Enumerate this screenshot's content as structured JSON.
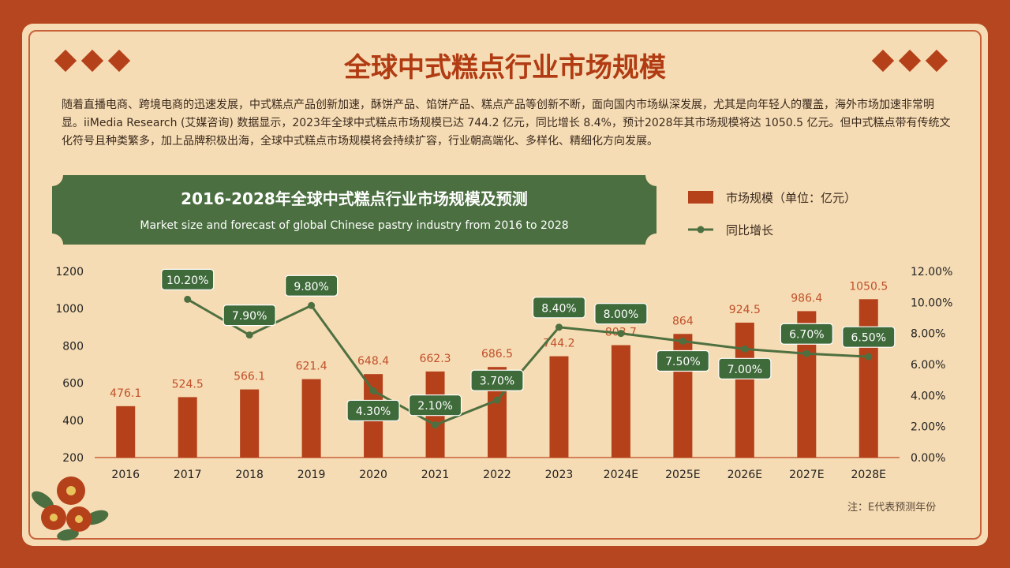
{
  "title": "全球中式糕点行业市场规模",
  "intro": "随着直播电商、跨境电商的迅速发展，中式糕点产品创新加速，酥饼产品、馅饼产品、糕点产品等创新不断，面向国内市场纵深发展，尤其是向年轻人的覆盖，海外市场加速非常明显。iiMedia Research (艾媒咨询) 数据显示，2023年全球中式糕点市场规模已达 744.2 亿元，同比增长 8.4%，预计2028年其市场规模将达 1050.5 亿元。但中式糕点带有传统文化符号且种类繁多，加上品牌积极出海，全球中式糕点市场规模将会持续扩容，行业朝高端化、多样化、精细化方向发展。",
  "note": "注：E代表预测年份",
  "colors": {
    "bar": "#b5411b",
    "line": "#4e7040",
    "label_bg": "#3f6a3a",
    "bar_label": "#c0502a",
    "frame": "#b5461f",
    "panel": "#f6dcb4"
  },
  "chart_data": {
    "type": "bar+line",
    "title": "2016-2028年全球中式糕点行业市场规模及预测",
    "subtitle": "Market size and forecast of global Chinese pastry industry from 2016 to 2028",
    "categories": [
      "2016",
      "2017",
      "2018",
      "2019",
      "2020",
      "2021",
      "2022",
      "2023",
      "2024E",
      "2025E",
      "2026E",
      "2027E",
      "2028E"
    ],
    "series": [
      {
        "name": "市场规模（单位：亿元）",
        "type": "bar",
        "axis": "left",
        "values": [
          476.1,
          524.5,
          566.1,
          621.4,
          648.4,
          662.3,
          686.5,
          744.2,
          803.7,
          864,
          924.5,
          986.4,
          1050.5
        ],
        "labels": [
          "476.1",
          "524.5",
          "566.1",
          "621.4",
          "648.4",
          "662.3",
          "686.5",
          "744.2",
          "803.7",
          "864",
          "924.5",
          "986.4",
          "1050.5"
        ]
      },
      {
        "name": "同比增长",
        "type": "line",
        "axis": "right",
        "values": [
          null,
          10.2,
          7.9,
          9.8,
          4.3,
          2.1,
          3.7,
          8.4,
          8.0,
          7.5,
          7.0,
          6.7,
          6.5
        ],
        "labels": [
          "",
          "10.20%",
          "7.90%",
          "9.80%",
          "4.30%",
          "2.10%",
          "3.70%",
          "8.40%",
          "8.00%",
          "7.50%",
          "7.00%",
          "6.70%",
          "6.50%"
        ],
        "label_position": [
          "",
          "above",
          "above",
          "above",
          "below",
          "above",
          "above",
          "above",
          "above",
          "below",
          "below",
          "above",
          "above"
        ]
      }
    ],
    "y_left": {
      "min": 200,
      "max": 1200,
      "ticks": [
        "200",
        "400",
        "600",
        "800",
        "1000",
        "1200"
      ]
    },
    "y_right": {
      "min": 0,
      "max": 12,
      "ticks": [
        "0.00%",
        "2.00%",
        "4.00%",
        "6.00%",
        "8.00%",
        "10.00%",
        "12.00%"
      ]
    },
    "grid": false,
    "legend_position": "top-right"
  }
}
